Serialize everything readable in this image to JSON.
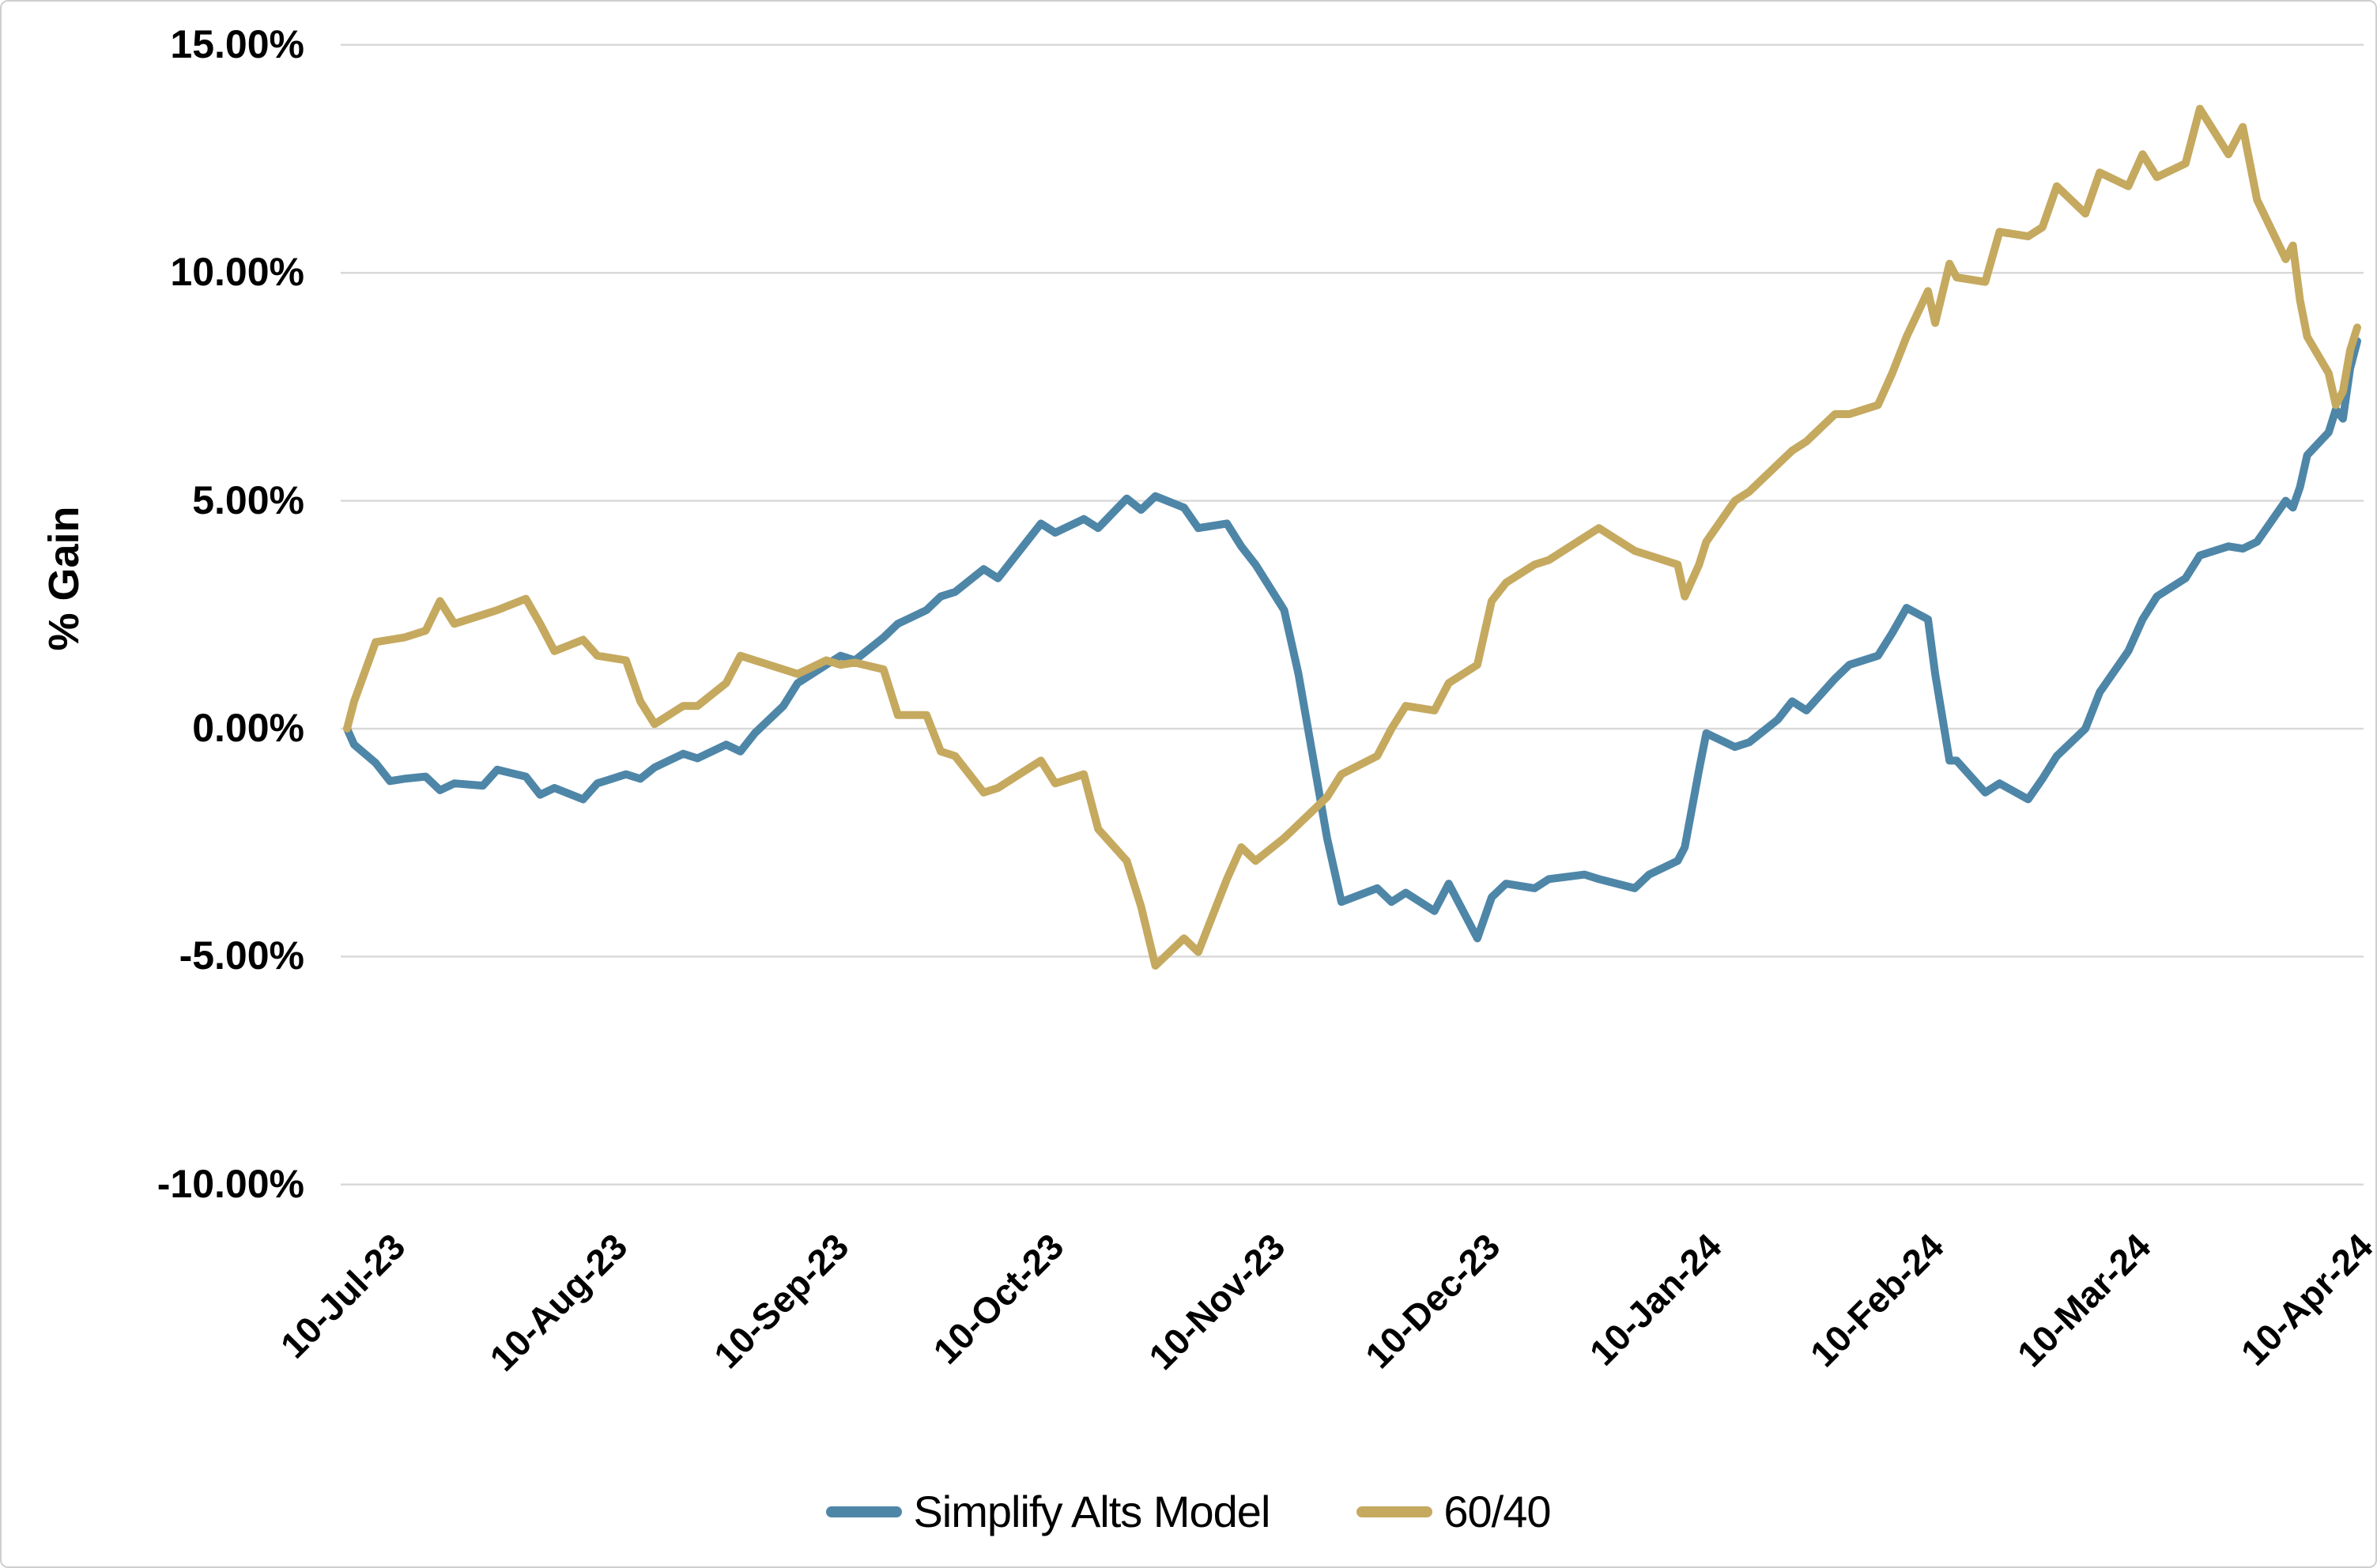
{
  "page": {
    "background": "#ffffff",
    "border_color": "#cfcfcf"
  },
  "y_axis": {
    "title": "% Gain"
  },
  "legend": {
    "items": [
      {
        "label": "Simplify Alts Model",
        "color": "#4e86a8"
      },
      {
        "label": "60/40",
        "color": "#c5a95f"
      }
    ]
  },
  "chart_data": {
    "type": "line",
    "title": "",
    "xlabel": "",
    "ylabel": "% Gain",
    "ylim": [
      -10,
      15
    ],
    "grid": "horizontal-only",
    "gridline_color": "#d9d9d9",
    "legend_position": "bottom-center",
    "y_ticks": [
      {
        "label": "15.00%",
        "value": 15
      },
      {
        "label": "10.00%",
        "value": 10
      },
      {
        "label": "5.00%",
        "value": 5
      },
      {
        "label": "0.00%",
        "value": 0
      },
      {
        "label": "-5.00%",
        "value": -5
      },
      {
        "label": "-10.00%",
        "value": -10
      }
    ],
    "x_ticks": [
      {
        "label": "10-Jul-23",
        "date": "2023-07-10"
      },
      {
        "label": "10-Aug-23",
        "date": "2023-08-10"
      },
      {
        "label": "10-Sep-23",
        "date": "2023-09-10"
      },
      {
        "label": "10-Oct-23",
        "date": "2023-10-10"
      },
      {
        "label": "10-Nov-23",
        "date": "2023-11-10"
      },
      {
        "label": "10-Dec-23",
        "date": "2023-12-10"
      },
      {
        "label": "10-Jan-24",
        "date": "2024-01-10"
      },
      {
        "label": "10-Feb-24",
        "date": "2024-02-10"
      },
      {
        "label": "10-Mar-24",
        "date": "2024-03-10"
      },
      {
        "label": "10-Apr-24",
        "date": "2024-04-10"
      }
    ],
    "x_range": {
      "start": "2023-07-06",
      "end": "2024-04-12"
    },
    "dates": [
      "2023-07-06",
      "2023-07-07",
      "2023-07-10",
      "2023-07-12",
      "2023-07-14",
      "2023-07-17",
      "2023-07-19",
      "2023-07-21",
      "2023-07-25",
      "2023-07-27",
      "2023-07-31",
      "2023-08-02",
      "2023-08-04",
      "2023-08-08",
      "2023-08-10",
      "2023-08-14",
      "2023-08-16",
      "2023-08-18",
      "2023-08-22",
      "2023-08-24",
      "2023-08-28",
      "2023-08-30",
      "2023-09-01",
      "2023-09-05",
      "2023-09-07",
      "2023-09-11",
      "2023-09-13",
      "2023-09-15",
      "2023-09-19",
      "2023-09-21",
      "2023-09-25",
      "2023-09-27",
      "2023-09-29",
      "2023-10-03",
      "2023-10-05",
      "2023-10-09",
      "2023-10-11",
      "2023-10-13",
      "2023-10-17",
      "2023-10-19",
      "2023-10-23",
      "2023-10-25",
      "2023-10-27",
      "2023-10-31",
      "2023-11-02",
      "2023-11-06",
      "2023-11-08",
      "2023-11-10",
      "2023-11-14",
      "2023-11-16",
      "2023-11-20",
      "2023-11-22",
      "2023-11-27",
      "2023-11-29",
      "2023-12-01",
      "2023-12-05",
      "2023-12-07",
      "2023-12-11",
      "2023-12-13",
      "2023-12-15",
      "2023-12-19",
      "2023-12-21",
      "2023-12-26",
      "2023-12-28",
      "2024-01-02",
      "2024-01-04",
      "2024-01-08",
      "2024-01-09",
      "2024-01-11",
      "2024-01-12",
      "2024-01-16",
      "2024-01-18",
      "2024-01-22",
      "2024-01-24",
      "2024-01-26",
      "2024-01-30",
      "2024-02-01",
      "2024-02-05",
      "2024-02-07",
      "2024-02-09",
      "2024-02-12",
      "2024-02-13",
      "2024-02-15",
      "2024-02-16",
      "2024-02-20",
      "2024-02-22",
      "2024-02-26",
      "2024-02-28",
      "2024-03-01",
      "2024-03-05",
      "2024-03-07",
      "2024-03-11",
      "2024-03-13",
      "2024-03-15",
      "2024-03-19",
      "2024-03-21",
      "2024-03-25",
      "2024-03-27",
      "2024-03-29",
      "2024-04-02",
      "2024-04-03",
      "2024-04-04",
      "2024-04-05",
      "2024-04-08",
      "2024-04-09",
      "2024-04-10",
      "2024-04-11",
      "2024-04-12"
    ],
    "series": [
      {
        "name": "Simplify Alts Model",
        "color": "#4e86a8",
        "values": [
          0.0,
          -0.35,
          -0.75,
          -1.15,
          -1.1,
          -1.05,
          -1.35,
          -1.2,
          -1.25,
          -0.9,
          -1.05,
          -1.45,
          -1.3,
          -1.55,
          -1.2,
          -1.0,
          -1.1,
          -0.85,
          -0.55,
          -0.65,
          -0.35,
          -0.5,
          -0.1,
          0.5,
          1.0,
          1.4,
          1.6,
          1.5,
          2.0,
          2.3,
          2.6,
          2.9,
          3.0,
          3.5,
          3.3,
          4.1,
          4.5,
          4.3,
          4.6,
          4.4,
          5.05,
          4.8,
          5.1,
          4.85,
          4.4,
          4.5,
          4.0,
          3.6,
          2.6,
          1.2,
          -2.4,
          -3.8,
          -3.5,
          -3.8,
          -3.6,
          -4.0,
          -3.4,
          -4.6,
          -3.7,
          -3.4,
          -3.5,
          -3.3,
          -3.2,
          -3.3,
          -3.5,
          -3.2,
          -2.9,
          -2.6,
          -0.9,
          -0.1,
          -0.4,
          -0.3,
          0.2,
          0.6,
          0.4,
          1.1,
          1.4,
          1.6,
          2.1,
          2.65,
          2.4,
          1.2,
          -0.7,
          -0.7,
          -1.4,
          -1.2,
          -1.55,
          -1.1,
          -0.6,
          0.0,
          0.8,
          1.7,
          2.4,
          2.9,
          3.3,
          3.8,
          4.0,
          3.95,
          4.1,
          5.0,
          4.85,
          5.3,
          6.0,
          6.5,
          7.0,
          6.8,
          7.9,
          8.5
        ]
      },
      {
        "name": "60/40",
        "color": "#c5a95f",
        "values": [
          0.0,
          0.6,
          1.9,
          1.95,
          2.0,
          2.15,
          2.8,
          2.3,
          2.5,
          2.6,
          2.85,
          2.3,
          1.7,
          1.95,
          1.6,
          1.5,
          0.6,
          0.1,
          0.5,
          0.5,
          1.0,
          1.6,
          1.5,
          1.3,
          1.2,
          1.5,
          1.4,
          1.45,
          1.3,
          0.3,
          0.3,
          -0.5,
          -0.6,
          -1.4,
          -1.3,
          -0.9,
          -0.7,
          -1.2,
          -1.0,
          -2.2,
          -2.9,
          -3.9,
          -5.2,
          -4.6,
          -4.9,
          -3.3,
          -2.6,
          -2.9,
          -2.4,
          -2.1,
          -1.5,
          -1.0,
          -0.6,
          0.0,
          0.5,
          0.4,
          1.0,
          1.4,
          2.8,
          3.2,
          3.6,
          3.7,
          4.2,
          4.4,
          3.9,
          3.8,
          3.6,
          2.9,
          3.6,
          4.1,
          5.0,
          5.2,
          5.8,
          6.1,
          6.3,
          6.9,
          6.9,
          7.1,
          7.8,
          8.6,
          9.6,
          8.9,
          10.2,
          9.9,
          9.8,
          10.9,
          10.8,
          11.0,
          11.9,
          11.3,
          12.2,
          11.9,
          12.6,
          12.1,
          12.4,
          13.6,
          12.6,
          13.2,
          11.6,
          10.3,
          10.6,
          9.4,
          8.6,
          7.8,
          7.1,
          7.4,
          8.3,
          8.8
        ]
      }
    ]
  }
}
